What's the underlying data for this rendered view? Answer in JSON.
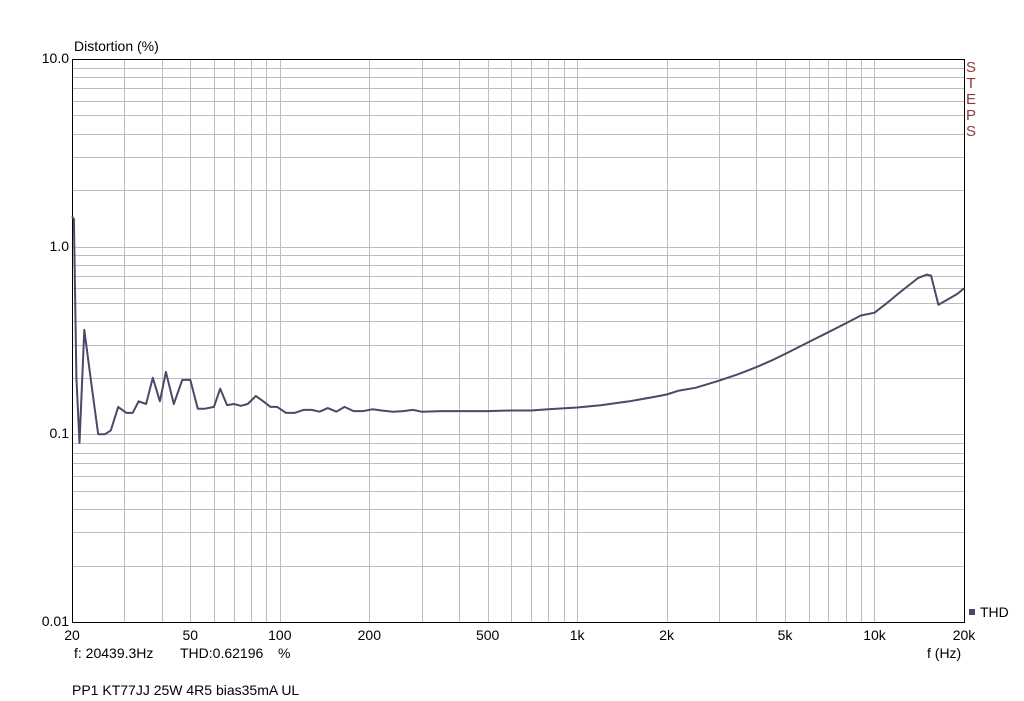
{
  "chart_data": {
    "type": "line",
    "ylabel": "Distortion (%)",
    "xlabel": "f (Hz)",
    "xscale": "log",
    "yscale": "log",
    "xlim": [
      20,
      20000
    ],
    "ylim": [
      0.01,
      10
    ],
    "grid": true,
    "legend_position": "bottom-right",
    "x_ticks": [
      {
        "v": 20,
        "label": "20"
      },
      {
        "v": 50,
        "label": "50"
      },
      {
        "v": 100,
        "label": "100"
      },
      {
        "v": 200,
        "label": "200"
      },
      {
        "v": 500,
        "label": "500"
      },
      {
        "v": 1000,
        "label": "1k"
      },
      {
        "v": 2000,
        "label": "2k"
      },
      {
        "v": 5000,
        "label": "5k"
      },
      {
        "v": 10000,
        "label": "10k"
      },
      {
        "v": 20000,
        "label": "20k"
      }
    ],
    "y_ticks": [
      {
        "v": 0.01,
        "label": "0.01"
      },
      {
        "v": 0.1,
        "label": "0.1"
      },
      {
        "v": 1,
        "label": "1.0"
      },
      {
        "v": 10,
        "label": "10.0"
      }
    ],
    "series": [
      {
        "name": "THD",
        "color": "#4a4a68",
        "points": [
          [
            20,
            1.45
          ],
          [
            20.3,
            1.4
          ],
          [
            20.7,
            0.2
          ],
          [
            21.2,
            0.09
          ],
          [
            22,
            0.36
          ],
          [
            23.3,
            0.18
          ],
          [
            24.5,
            0.1
          ],
          [
            25.8,
            0.1
          ],
          [
            27,
            0.105
          ],
          [
            28.6,
            0.14
          ],
          [
            30.5,
            0.13
          ],
          [
            32,
            0.13
          ],
          [
            33.5,
            0.15
          ],
          [
            35.5,
            0.145
          ],
          [
            37.4,
            0.2
          ],
          [
            39.5,
            0.15
          ],
          [
            41.4,
            0.215
          ],
          [
            44,
            0.145
          ],
          [
            47,
            0.195
          ],
          [
            50,
            0.195
          ],
          [
            53,
            0.137
          ],
          [
            56,
            0.137
          ],
          [
            60,
            0.14
          ],
          [
            63,
            0.175
          ],
          [
            66.5,
            0.143
          ],
          [
            70,
            0.145
          ],
          [
            74,
            0.142
          ],
          [
            78,
            0.145
          ],
          [
            83,
            0.16
          ],
          [
            88,
            0.15
          ],
          [
            93,
            0.14
          ],
          [
            98,
            0.14
          ],
          [
            105,
            0.13
          ],
          [
            112,
            0.13
          ],
          [
            120,
            0.135
          ],
          [
            128,
            0.135
          ],
          [
            136,
            0.132
          ],
          [
            145,
            0.138
          ],
          [
            155,
            0.132
          ],
          [
            165,
            0.14
          ],
          [
            177,
            0.133
          ],
          [
            190,
            0.133
          ],
          [
            205,
            0.136
          ],
          [
            220,
            0.134
          ],
          [
            240,
            0.132
          ],
          [
            260,
            0.133
          ],
          [
            280,
            0.135
          ],
          [
            300,
            0.132
          ],
          [
            350,
            0.133
          ],
          [
            400,
            0.133
          ],
          [
            500,
            0.133
          ],
          [
            600,
            0.134
          ],
          [
            700,
            0.134
          ],
          [
            800,
            0.136
          ],
          [
            1000,
            0.139
          ],
          [
            1200,
            0.143
          ],
          [
            1500,
            0.15
          ],
          [
            1800,
            0.158
          ],
          [
            2000,
            0.163
          ],
          [
            2200,
            0.171
          ],
          [
            2500,
            0.177
          ],
          [
            3000,
            0.193
          ],
          [
            3500,
            0.21
          ],
          [
            4000,
            0.228
          ],
          [
            4500,
            0.247
          ],
          [
            5000,
            0.268
          ],
          [
            6000,
            0.31
          ],
          [
            7000,
            0.35
          ],
          [
            8000,
            0.39
          ],
          [
            9000,
            0.43
          ],
          [
            10000,
            0.445
          ],
          [
            11000,
            0.5
          ],
          [
            12000,
            0.56
          ],
          [
            13000,
            0.62
          ],
          [
            14000,
            0.68
          ],
          [
            15000,
            0.71
          ],
          [
            15500,
            0.7
          ],
          [
            16400,
            0.49
          ],
          [
            17500,
            0.52
          ],
          [
            19000,
            0.56
          ],
          [
            20000,
            0.6
          ]
        ]
      }
    ]
  },
  "side_label": "STEPS",
  "readout": {
    "frequency": "f: 20439.3Hz",
    "thd": "THD:0.62196",
    "unit": "%"
  },
  "caption": "PP1 KT77JJ 25W 4R5 bias35mA UL",
  "colors": {
    "grid": "#bdbdbd",
    "axes": "#000000",
    "steps": "#8b3a3a"
  }
}
